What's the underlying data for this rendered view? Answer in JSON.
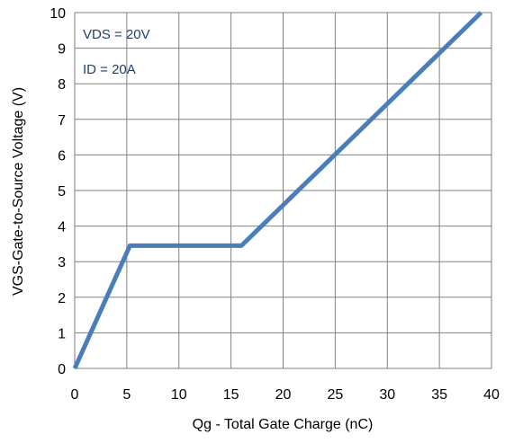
{
  "chart_data": {
    "type": "line",
    "xlabel": "Qg - Total Gate Charge (nC)",
    "ylabel": "VGS-Gate-to-Source Voltage (V)",
    "xlim": [
      0,
      40
    ],
    "ylim": [
      0,
      10
    ],
    "xticks": [
      "0",
      "5",
      "10",
      "15",
      "20",
      "25",
      "30",
      "35",
      "40"
    ],
    "yticks": [
      "0",
      "1",
      "2",
      "3",
      "4",
      "5",
      "6",
      "7",
      "8",
      "9",
      "10"
    ],
    "grid": true,
    "annotations": [
      {
        "text": "VDS = 20V"
      },
      {
        "text": "ID = 20A"
      }
    ],
    "series": [
      {
        "color": "#4a7ebb",
        "x": [
          0,
          5.3,
          16,
          39
        ],
        "y": [
          0,
          3.45,
          3.45,
          10
        ]
      }
    ]
  }
}
